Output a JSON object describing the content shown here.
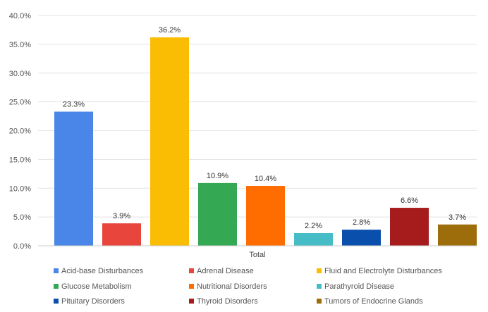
{
  "chart_data": {
    "type": "bar",
    "categories": [
      "Total"
    ],
    "xlabel": "Total",
    "ylim": [
      0,
      40
    ],
    "yticks": [
      "0.0%",
      "5.0%",
      "10.0%",
      "15.0%",
      "20.0%",
      "25.0%",
      "30.0%",
      "35.0%",
      "40.0%"
    ],
    "grid": true,
    "legend_position": "bottom",
    "series": [
      {
        "name": "Acid-base Disturbances",
        "values": [
          23.3
        ],
        "label": "23.3%",
        "color": "#4a86e8"
      },
      {
        "name": "Adrenal Disease",
        "values": [
          3.9
        ],
        "label": "3.9%",
        "color": "#e8453c"
      },
      {
        "name": "Fluid and Electrolyte Disturbances",
        "values": [
          36.2
        ],
        "label": "36.2%",
        "color": "#fbbc04"
      },
      {
        "name": "Glucose Metabolism",
        "values": [
          10.9
        ],
        "label": "10.9%",
        "color": "#34a853"
      },
      {
        "name": "Nutritional Disorders",
        "values": [
          10.4
        ],
        "label": "10.4%",
        "color": "#ff6d01"
      },
      {
        "name": "Parathyroid Disease",
        "values": [
          2.2
        ],
        "label": "2.2%",
        "color": "#46bdc6"
      },
      {
        "name": "Pituitary Disorders",
        "values": [
          2.8
        ],
        "label": "2.8%",
        "color": "#0b4fad"
      },
      {
        "name": "Thyroid Disorders",
        "values": [
          6.6
        ],
        "label": "6.6%",
        "color": "#a61c1c"
      },
      {
        "name": "Tumors of Endocrine Glands",
        "values": [
          3.7
        ],
        "label": "3.7%",
        "color": "#9c6d0a"
      }
    ]
  }
}
